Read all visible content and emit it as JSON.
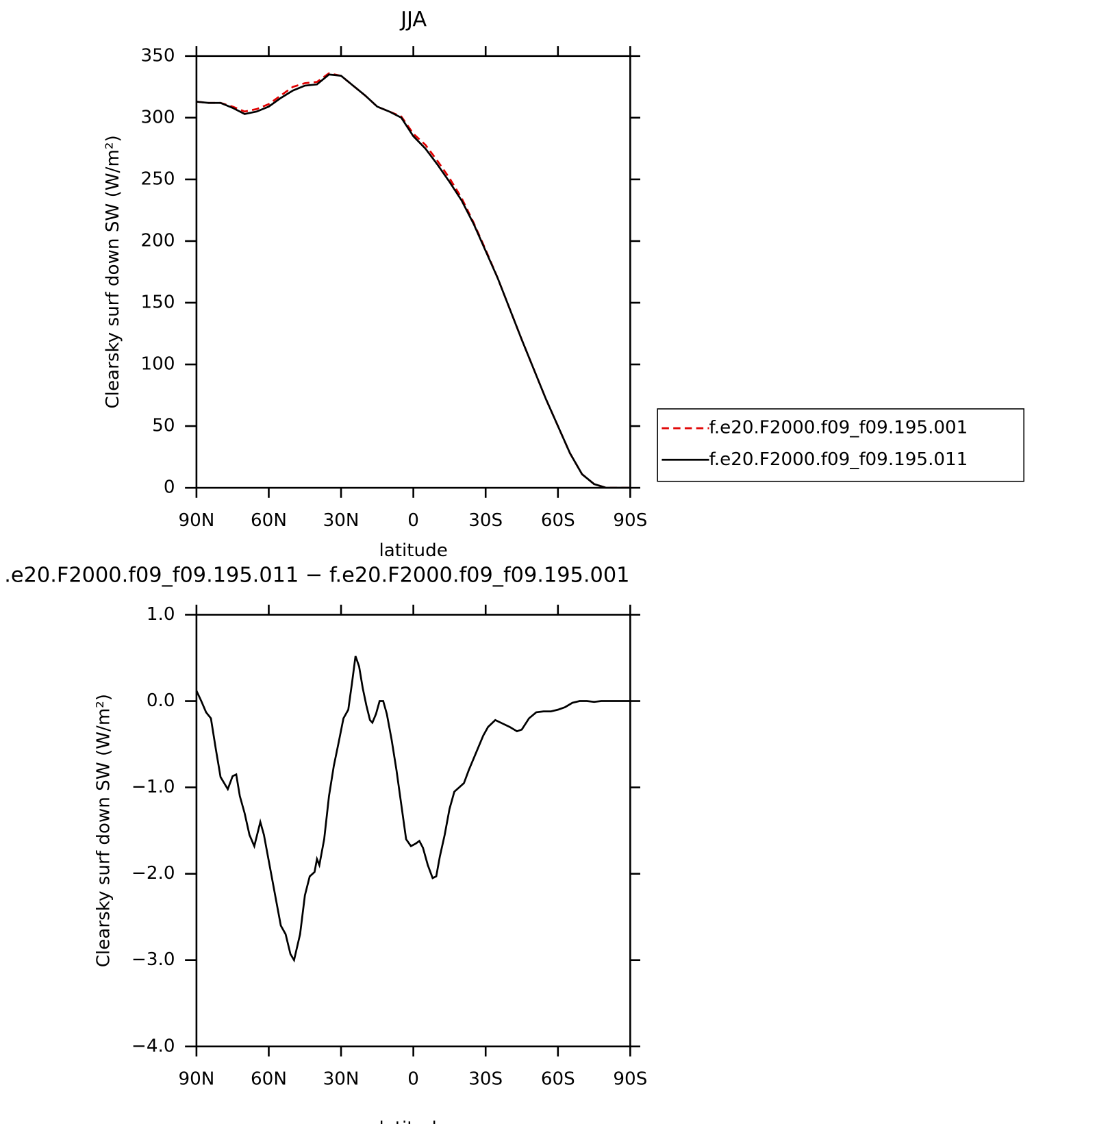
{
  "chart_data": [
    {
      "type": "line",
      "title": "JJA",
      "x_label": "latitude",
      "y_label": "Clearsky surf down SW (W/m²)",
      "x": [
        90,
        85,
        80,
        75,
        70,
        65,
        60,
        55,
        50,
        45,
        40,
        35,
        30,
        25,
        20,
        15,
        10,
        5,
        0,
        -5,
        -10,
        -15,
        -20,
        -25,
        -30,
        -35,
        -40,
        -45,
        -50,
        -55,
        -60,
        -65,
        -70,
        -75,
        -80,
        -85,
        -90
      ],
      "series": [
        {
          "name": "f.e20.F2000.f09_f09.195.001",
          "color": "#e00000",
          "line_style": "dashed",
          "values": [
            313,
            312,
            312,
            309,
            305,
            307,
            311,
            318,
            325,
            328,
            329,
            336,
            334,
            326,
            318,
            309,
            305,
            301,
            287,
            278,
            265,
            251,
            235,
            215,
            193,
            170,
            145,
            120,
            96,
            72,
            50,
            28,
            11,
            3,
            0,
            0,
            0
          ]
        },
        {
          "name": "f.e20.F2000.f09_f09.195.011",
          "color": "#000000",
          "line_style": "solid",
          "values": [
            313,
            312,
            312,
            308,
            303,
            305,
            309,
            316,
            322,
            326,
            327,
            335,
            334,
            326,
            318,
            309,
            305,
            300,
            285,
            275,
            262,
            248,
            233,
            214,
            192,
            170,
            145,
            120,
            96,
            72,
            50,
            28,
            11,
            3,
            0,
            0,
            0
          ]
        }
      ],
      "xlim": [
        90,
        -90
      ],
      "xticks": [
        {
          "value": 90,
          "label": "90N"
        },
        {
          "value": 60,
          "label": "60N"
        },
        {
          "value": 30,
          "label": "30N"
        },
        0,
        {
          "value": -30,
          "label": "30S"
        },
        {
          "value": -60,
          "label": "60S"
        },
        {
          "value": -90,
          "label": "90S"
        }
      ],
      "ylim": [
        0,
        350
      ],
      "yticks": [
        0,
        50,
        100,
        150,
        200,
        250,
        300,
        350
      ],
      "legend": "right"
    },
    {
      "type": "line",
      "title": ".e20.F2000.f09_f09.195.011 − f.e20.F2000.f09_f09.195.001",
      "x_label": "latitude",
      "y_label": "Clearsky surf down SW (W/m²)",
      "x": [
        90,
        88,
        86,
        84,
        82,
        80,
        77,
        75,
        73.5,
        72,
        70,
        68,
        66,
        63.5,
        62,
        60,
        57,
        55,
        53,
        51,
        49.5,
        47,
        45,
        43,
        41,
        40,
        39,
        37,
        35,
        33,
        31,
        29,
        27,
        25.5,
        24,
        22.5,
        21,
        19.5,
        18,
        17,
        15.5,
        14,
        12.5,
        11,
        9,
        7,
        5,
        3,
        1,
        -1,
        -2.5,
        -4,
        -6,
        -8,
        -9.5,
        -11,
        -13,
        -15,
        -17,
        -19,
        -21,
        -23,
        -26,
        -29,
        -31,
        -34,
        -37,
        -40,
        -43,
        -45,
        -48,
        -51,
        -54,
        -57,
        -60,
        -63,
        -66,
        -69,
        -72,
        -75,
        -78,
        -81,
        -90
      ],
      "series": [
        {
          "color": "#000000",
          "line_style": "solid",
          "values": [
            0.12,
            0.0,
            -0.13,
            -0.2,
            -0.55,
            -0.88,
            -1.02,
            -0.87,
            -0.85,
            -1.1,
            -1.3,
            -1.55,
            -1.68,
            -1.4,
            -1.55,
            -1.85,
            -2.3,
            -2.6,
            -2.7,
            -2.93,
            -3.0,
            -2.7,
            -2.25,
            -2.03,
            -1.98,
            -1.83,
            -1.9,
            -1.6,
            -1.1,
            -0.75,
            -0.48,
            -0.2,
            -0.1,
            0.2,
            0.52,
            0.4,
            0.15,
            -0.05,
            -0.22,
            -0.25,
            -0.15,
            0.0,
            0.0,
            -0.15,
            -0.45,
            -0.8,
            -1.2,
            -1.6,
            -1.68,
            -1.65,
            -1.62,
            -1.7,
            -1.9,
            -2.05,
            -2.03,
            -1.8,
            -1.55,
            -1.25,
            -1.05,
            -1.0,
            -0.95,
            -0.8,
            -0.6,
            -0.4,
            -0.3,
            -0.22,
            -0.26,
            -0.3,
            -0.35,
            -0.33,
            -0.2,
            -0.13,
            -0.12,
            -0.12,
            -0.1,
            -0.07,
            -0.02,
            0.0,
            0.0,
            -0.01,
            0.0,
            0.0,
            0.0
          ]
        }
      ],
      "xlim": [
        90,
        -90
      ],
      "xticks": [
        {
          "value": 90,
          "label": "90N"
        },
        {
          "value": 60,
          "label": "60N"
        },
        {
          "value": 30,
          "label": "30N"
        },
        0,
        {
          "value": -30,
          "label": "30S"
        },
        {
          "value": -60,
          "label": "60S"
        },
        {
          "value": -90,
          "label": "90S"
        }
      ],
      "ylim": [
        -4,
        1
      ],
      "yticks": [
        {
          "value": -4,
          "label": "−4.0"
        },
        {
          "value": -3,
          "label": "−3.0"
        },
        {
          "value": -2,
          "label": "−2.0"
        },
        {
          "value": -1,
          "label": "−1.0"
        },
        {
          "value": 0,
          "label": "0.0"
        },
        {
          "value": 1,
          "label": "1.0"
        }
      ]
    }
  ]
}
